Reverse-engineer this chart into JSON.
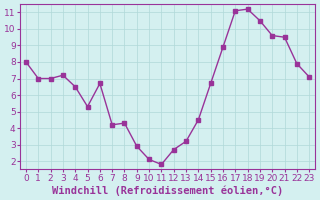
{
  "x": [
    0,
    1,
    2,
    3,
    4,
    5,
    6,
    7,
    8,
    9,
    10,
    11,
    12,
    13,
    14,
    15,
    16,
    17,
    18,
    19,
    20,
    21,
    22,
    23
  ],
  "y": [
    8.0,
    7.0,
    7.0,
    7.2,
    6.5,
    5.3,
    6.7,
    4.2,
    4.3,
    2.9,
    2.1,
    1.8,
    2.7,
    3.2,
    4.5,
    6.7,
    8.9,
    11.1,
    11.2,
    10.5,
    9.6,
    9.5,
    7.9,
    7.1
  ],
  "line_color": "#993399",
  "marker_color": "#993399",
  "bg_color": "#d4f0f0",
  "grid_color": "#b0d8d8",
  "axis_color": "#993399",
  "xlabel": "Windchill (Refroidissement éolien,°C)",
  "xlabel_color": "#993399",
  "xlim_min": -0.5,
  "xlim_max": 23.5,
  "ylim_min": 1.5,
  "ylim_max": 11.5,
  "yticks": [
    2,
    3,
    4,
    5,
    6,
    7,
    8,
    9,
    10,
    11
  ],
  "xticks": [
    0,
    1,
    2,
    3,
    4,
    5,
    6,
    7,
    8,
    9,
    10,
    11,
    12,
    13,
    14,
    15,
    16,
    17,
    18,
    19,
    20,
    21,
    22,
    23
  ],
  "tick_fontsize": 6.5,
  "xlabel_fontsize": 7.5
}
